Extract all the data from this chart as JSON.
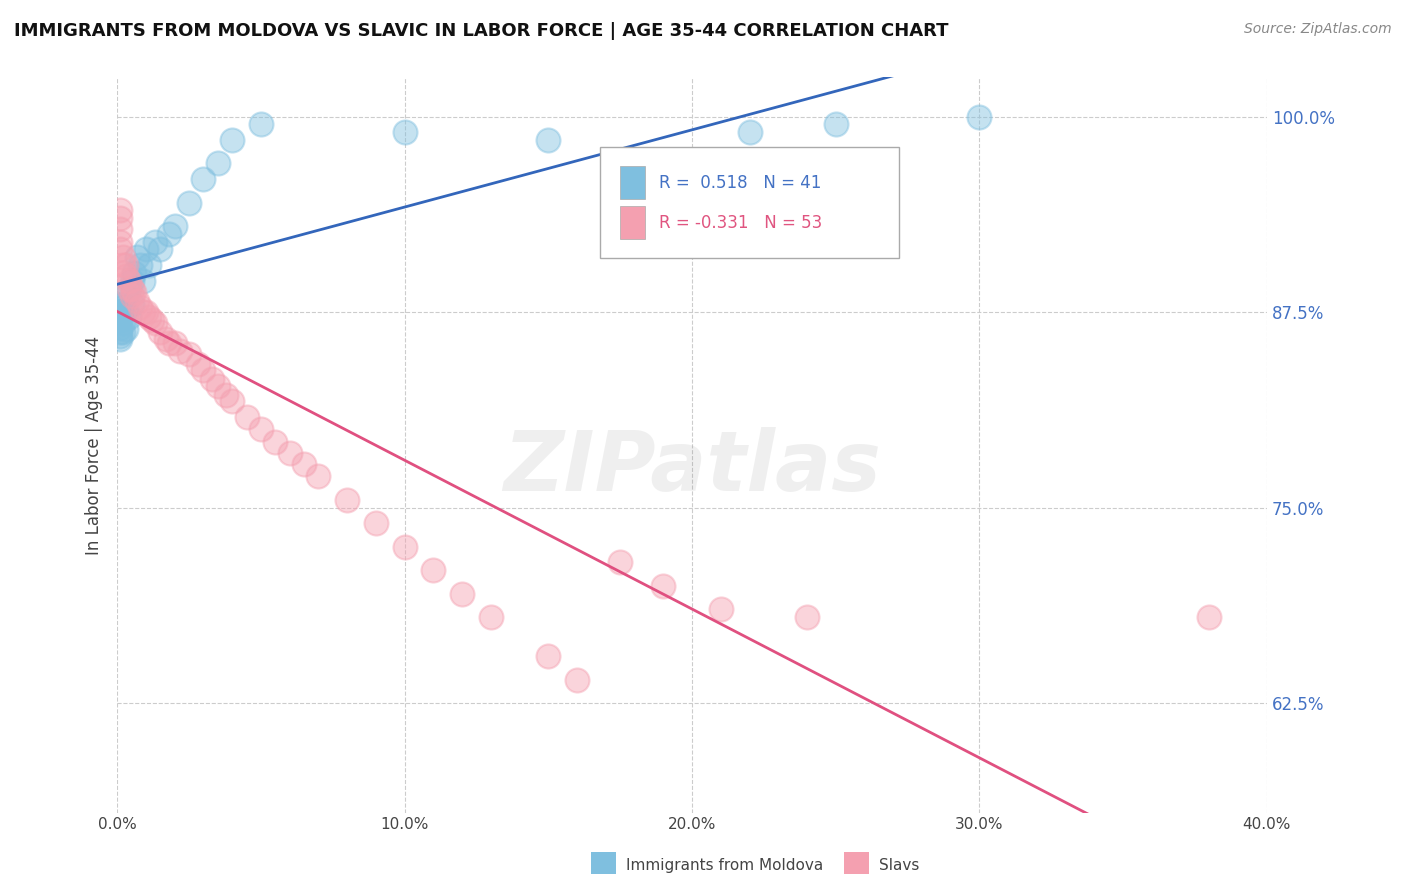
{
  "title": "IMMIGRANTS FROM MOLDOVA VS SLAVIC IN LABOR FORCE | AGE 35-44 CORRELATION CHART",
  "source": "Source: ZipAtlas.com",
  "ylabel": "In Labor Force | Age 35-44",
  "xlim": [
    0.0,
    0.4
  ],
  "ylim": [
    0.555,
    1.025
  ],
  "xticks": [
    0.0,
    0.1,
    0.2,
    0.3,
    0.4
  ],
  "xtick_labels": [
    "0.0%",
    "10.0%",
    "20.0%",
    "30.0%",
    "40.0%"
  ],
  "yticks": [
    0.625,
    0.75,
    0.875,
    1.0
  ],
  "ytick_labels": [
    "62.5%",
    "75.0%",
    "87.5%",
    "100.0%"
  ],
  "series1_name": "Immigrants from Moldova",
  "series1_color": "#7fbfdf",
  "series1_line_color": "#3366bb",
  "series1_R": 0.518,
  "series1_N": 41,
  "series2_name": "Slavs",
  "series2_color": "#f4a0b0",
  "series2_line_color": "#e05080",
  "series2_R": -0.331,
  "series2_N": 53,
  "background_color": "#ffffff",
  "grid_color": "#cccccc",
  "moldova_x": [
    0.001,
    0.001,
    0.001,
    0.001,
    0.001,
    0.001,
    0.001,
    0.001,
    0.001,
    0.001,
    0.002,
    0.002,
    0.002,
    0.002,
    0.003,
    0.003,
    0.003,
    0.004,
    0.004,
    0.005,
    0.005,
    0.006,
    0.007,
    0.008,
    0.009,
    0.01,
    0.011,
    0.013,
    0.015,
    0.018,
    0.02,
    0.025,
    0.03,
    0.035,
    0.04,
    0.05,
    0.1,
    0.15,
    0.22,
    0.25,
    0.3
  ],
  "moldova_y": [
    0.875,
    0.875,
    0.875,
    0.878,
    0.872,
    0.87,
    0.865,
    0.862,
    0.86,
    0.858,
    0.88,
    0.878,
    0.868,
    0.862,
    0.885,
    0.876,
    0.864,
    0.89,
    0.872,
    0.895,
    0.88,
    0.9,
    0.91,
    0.905,
    0.895,
    0.915,
    0.905,
    0.92,
    0.915,
    0.925,
    0.93,
    0.945,
    0.96,
    0.97,
    0.985,
    0.995,
    0.99,
    0.985,
    0.99,
    0.995,
    1.0
  ],
  "slavs_x": [
    0.001,
    0.001,
    0.001,
    0.001,
    0.001,
    0.002,
    0.002,
    0.002,
    0.003,
    0.003,
    0.004,
    0.004,
    0.005,
    0.005,
    0.006,
    0.007,
    0.008,
    0.009,
    0.01,
    0.011,
    0.012,
    0.013,
    0.015,
    0.017,
    0.018,
    0.02,
    0.022,
    0.025,
    0.028,
    0.03,
    0.033,
    0.035,
    0.038,
    0.04,
    0.045,
    0.05,
    0.055,
    0.06,
    0.065,
    0.07,
    0.08,
    0.09,
    0.1,
    0.11,
    0.12,
    0.13,
    0.15,
    0.16,
    0.175,
    0.19,
    0.21,
    0.24,
    0.38
  ],
  "slavs_y": [
    0.94,
    0.935,
    0.928,
    0.92,
    0.915,
    0.91,
    0.905,
    0.9,
    0.905,
    0.898,
    0.895,
    0.89,
    0.89,
    0.885,
    0.888,
    0.882,
    0.878,
    0.875,
    0.875,
    0.872,
    0.87,
    0.868,
    0.862,
    0.858,
    0.855,
    0.855,
    0.85,
    0.848,
    0.842,
    0.838,
    0.832,
    0.828,
    0.822,
    0.818,
    0.808,
    0.8,
    0.792,
    0.785,
    0.778,
    0.77,
    0.755,
    0.74,
    0.725,
    0.71,
    0.695,
    0.68,
    0.655,
    0.64,
    0.715,
    0.7,
    0.685,
    0.68,
    0.68
  ]
}
